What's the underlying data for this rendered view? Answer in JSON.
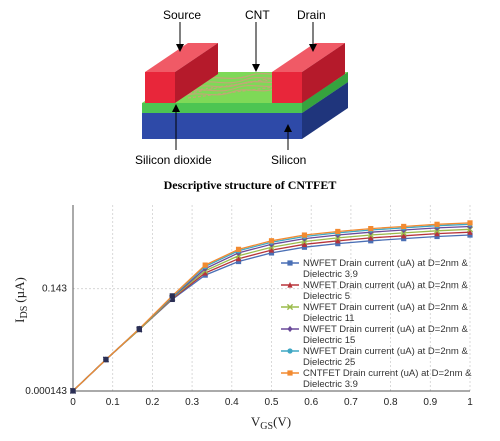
{
  "diagram": {
    "labels": {
      "source": "Source",
      "cnt": "CNT",
      "drain": "Drain",
      "silicon_dioxide": "Silicon dioxide",
      "silicon": "Silicon"
    },
    "caption": "Descriptive structure of CNTFET",
    "colors": {
      "electrode": "#e8263a",
      "oxide": "#4cc552",
      "substrate": "#2e4aa8",
      "cnt": "#c9a37a"
    }
  },
  "chart_data": {
    "type": "line",
    "xlabel_main": "V",
    "xlabel_sub": "GS",
    "xlabel_unit": "(V)",
    "ylabel_main": "I",
    "ylabel_sub": "DS",
    "ylabel_unit": "(µA)",
    "x_ticks": [
      "0",
      "0.1",
      "0.2",
      "0.3",
      "0.4",
      "0.5",
      "0.6",
      "0.7",
      "0.8",
      "0.9",
      "1"
    ],
    "y_ticks": [
      "0.000143",
      "0.143"
    ],
    "xlim": [
      0,
      1
    ],
    "legend_position": "right",
    "x": [
      0,
      0.083,
      0.167,
      0.25,
      0.333,
      0.417,
      0.5,
      0.583,
      0.667,
      0.75,
      0.833,
      0.917,
      1
    ],
    "series": [
      {
        "name": "NWFET Drain current (uA) at D=2nm & Dielectric 3.9",
        "color": "#4a6fb5",
        "marker": "square",
        "values": [
          0.000143,
          0.044,
          0.086,
          0.128,
          0.162,
          0.181,
          0.193,
          0.201,
          0.206,
          0.21,
          0.213,
          0.216,
          0.218
        ]
      },
      {
        "name": "NWFET Drain current (uA) at D=2nm & Dielectric 5",
        "color": "#b8343a",
        "marker": "triangle",
        "values": [
          0.000143,
          0.044,
          0.086,
          0.129,
          0.165,
          0.185,
          0.197,
          0.205,
          0.21,
          0.214,
          0.217,
          0.22,
          0.222
        ]
      },
      {
        "name": "NWFET Drain current (uA) at D=2nm & Dielectric 11",
        "color": "#9abb4a",
        "marker": "x",
        "values": [
          0.000143,
          0.044,
          0.086,
          0.13,
          0.168,
          0.189,
          0.201,
          0.209,
          0.214,
          0.218,
          0.221,
          0.224,
          0.226
        ]
      },
      {
        "name": "NWFET Drain current (uA) at D=2nm & Dielectric 15",
        "color": "#6a4a9a",
        "marker": "diamond",
        "values": [
          0.000143,
          0.044,
          0.087,
          0.131,
          0.171,
          0.193,
          0.205,
          0.213,
          0.218,
          0.222,
          0.225,
          0.228,
          0.23
        ]
      },
      {
        "name": "NWFET Drain current (uA) at D=2nm & Dielectric 25",
        "color": "#3fa7c4",
        "marker": "circle",
        "values": [
          0.000143,
          0.044,
          0.087,
          0.132,
          0.174,
          0.196,
          0.208,
          0.216,
          0.221,
          0.225,
          0.228,
          0.231,
          0.233
        ]
      },
      {
        "name": "CNTFET Drain current (uA) at D=2nm & Dielectric 3.9",
        "color": "#f28a30",
        "marker": "square",
        "values": [
          0.000143,
          0.044,
          0.087,
          0.133,
          0.176,
          0.198,
          0.21,
          0.218,
          0.223,
          0.227,
          0.23,
          0.233,
          0.235
        ]
      }
    ],
    "pivot_color": "#2b2f55"
  }
}
